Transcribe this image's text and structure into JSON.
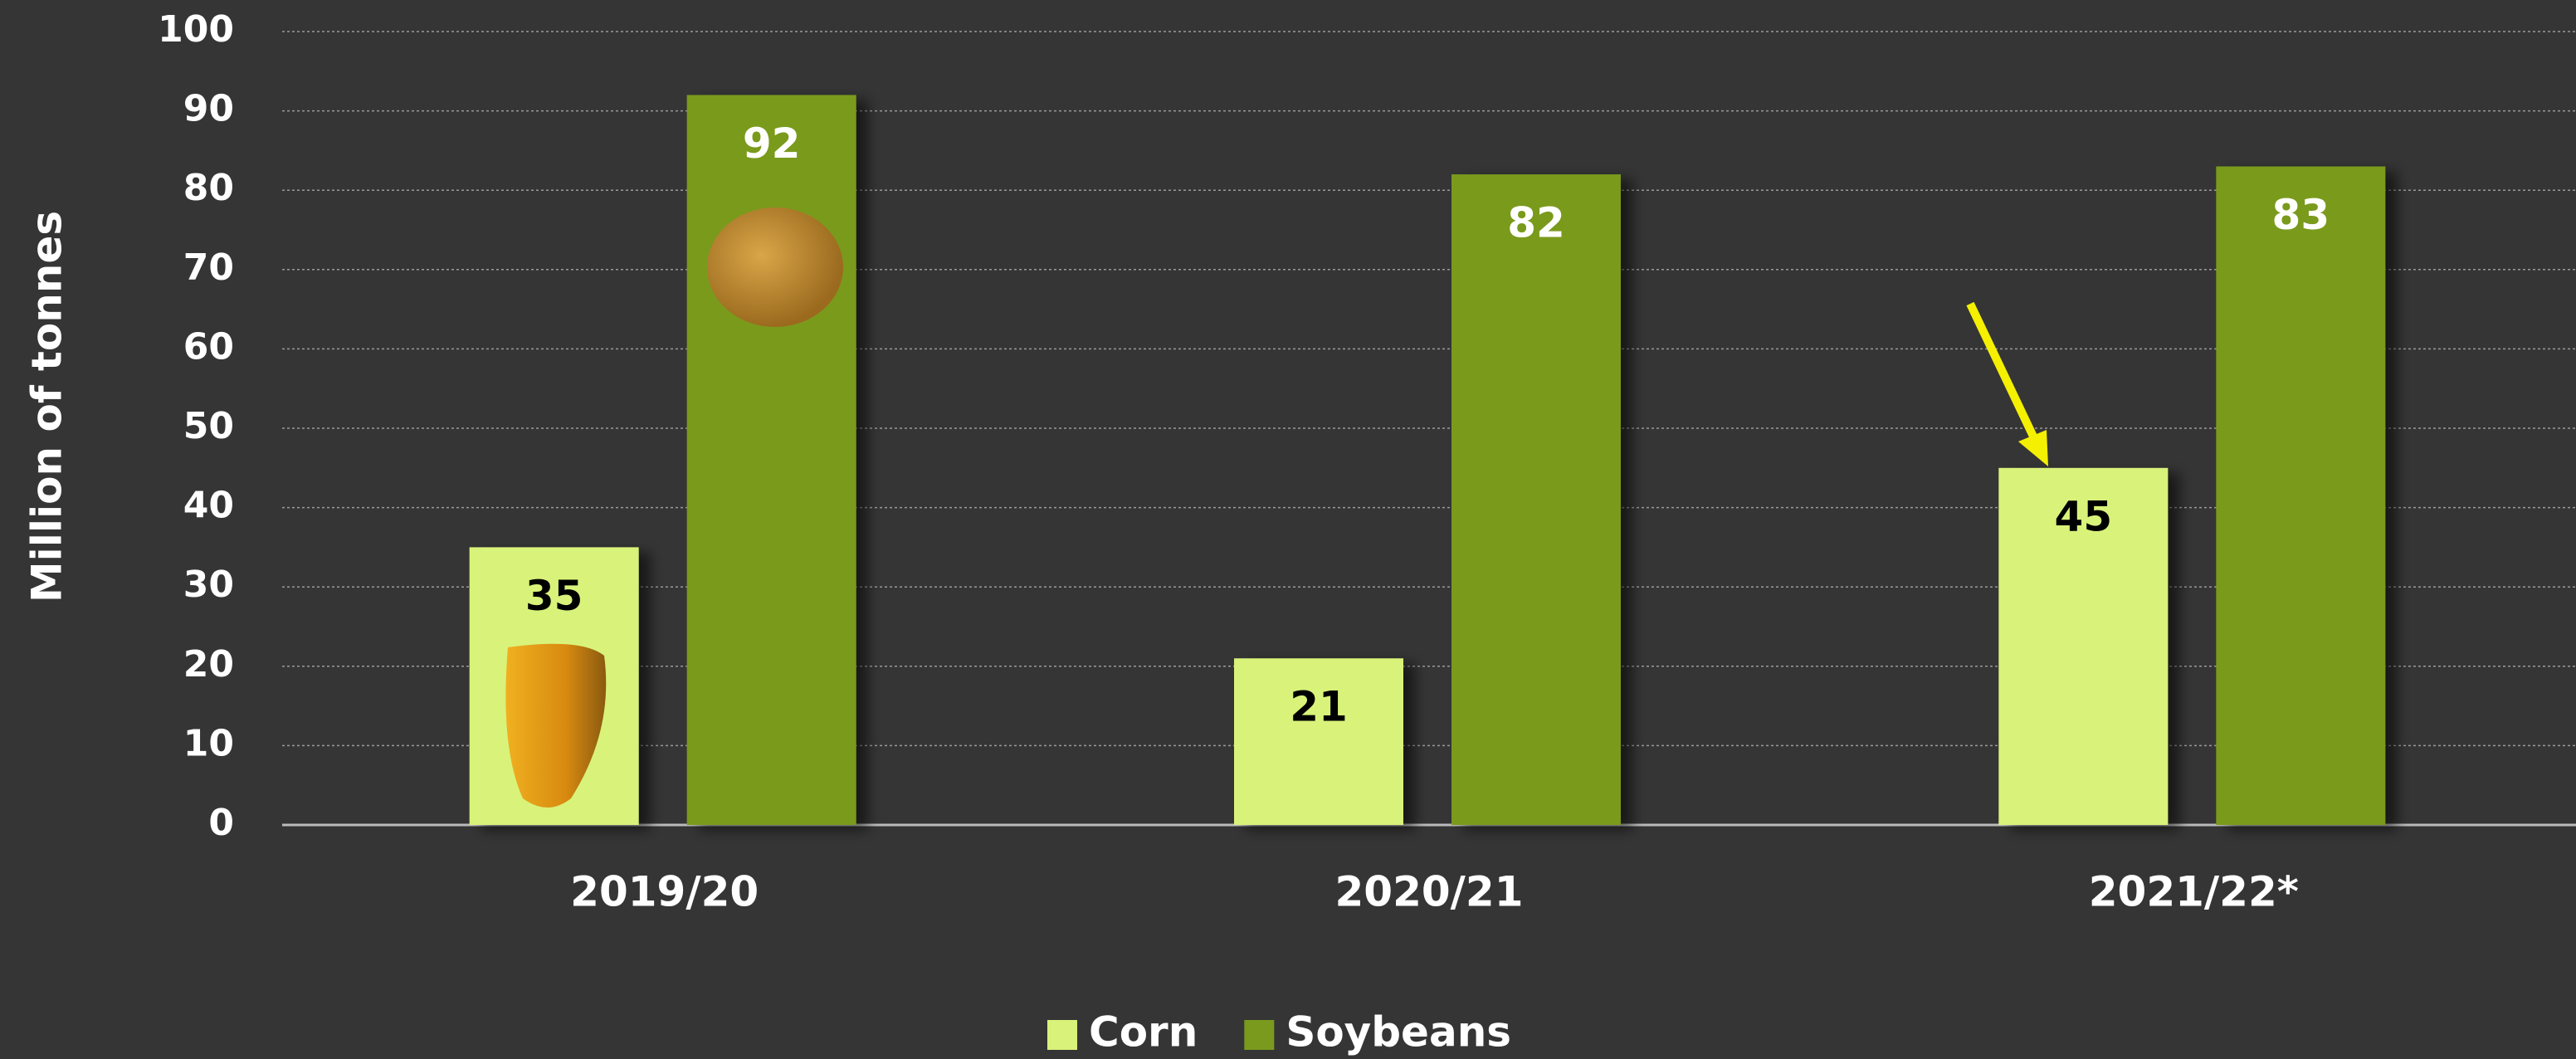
{
  "chart_data": {
    "type": "bar",
    "y_label": "Million of tonnes",
    "categories": [
      "2019/20",
      "2020/21",
      "2021/22*"
    ],
    "series": [
      {
        "name": "Corn",
        "color": "#d9f27a",
        "label_color": "#000000",
        "values": [
          35,
          21,
          45
        ]
      },
      {
        "name": "Soybeans",
        "color": "#7a9a1e",
        "label_color": "#ffffff",
        "values": [
          92,
          82,
          83
        ]
      }
    ],
    "ylim": [
      0,
      100
    ],
    "yticks": [
      0,
      10,
      20,
      30,
      40,
      50,
      60,
      70,
      80,
      90,
      100
    ],
    "grid": true,
    "legend": "bottom"
  }
}
